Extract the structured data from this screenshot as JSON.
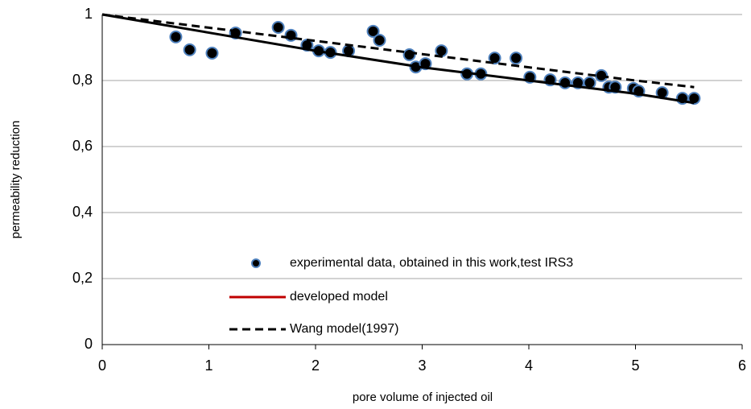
{
  "chart_data": {
    "type": "scatter",
    "x_label": "pore volume of injected oil",
    "y_label": "permeability reduction",
    "xlim": [
      0,
      6
    ],
    "xticks": [
      0,
      1,
      2,
      3,
      4,
      5,
      6
    ],
    "ylim": [
      0,
      1
    ],
    "yticks": [
      0,
      {
        "value": 0.2,
        "label": "0,2"
      },
      {
        "value": 0.4,
        "label": "0,4"
      },
      {
        "value": 0.6,
        "label": "0,6"
      },
      {
        "value": 0.8,
        "label": "0,8"
      },
      1
    ],
    "grid": true,
    "series": [
      {
        "name": "experimental data, obtained in this work,test IRS3",
        "type": "scatter",
        "color": "#000000",
        "edge_color": "#4f81bd",
        "x": [
          0.69,
          0.82,
          1.03,
          1.25,
          1.65,
          1.77,
          1.92,
          2.03,
          2.14,
          2.31,
          2.54,
          2.6,
          2.88,
          2.94,
          3.03,
          3.18,
          3.42,
          3.55,
          3.68,
          3.88,
          4.01,
          4.2,
          4.34,
          4.46,
          4.57,
          4.68,
          4.75,
          4.81,
          4.98,
          5.03,
          5.25,
          5.44,
          5.55
        ],
        "values": [
          0.932,
          0.893,
          0.883,
          0.944,
          0.961,
          0.937,
          0.907,
          0.89,
          0.885,
          0.89,
          0.949,
          0.922,
          0.878,
          0.841,
          0.851,
          0.89,
          0.82,
          0.82,
          0.868,
          0.868,
          0.81,
          0.802,
          0.793,
          0.793,
          0.793,
          0.815,
          0.78,
          0.78,
          0.776,
          0.768,
          0.763,
          0.746,
          0.746
        ]
      },
      {
        "name": "developed model",
        "type": "line",
        "color": "#000000",
        "legend_color": "#c00000",
        "dash": false,
        "x": [
          0,
          1,
          2,
          3,
          4,
          5,
          5.55
        ],
        "values": [
          1,
          0.945,
          0.89,
          0.84,
          0.8,
          0.76,
          0.732
        ]
      },
      {
        "name": "Wang model(1997)",
        "type": "line",
        "color": "#000000",
        "legend_color": "#000000",
        "dash": true,
        "x": [
          0,
          1,
          2,
          3,
          4,
          5,
          5.55
        ],
        "values": [
          1,
          0.96,
          0.92,
          0.88,
          0.84,
          0.8,
          0.78
        ]
      }
    ]
  }
}
